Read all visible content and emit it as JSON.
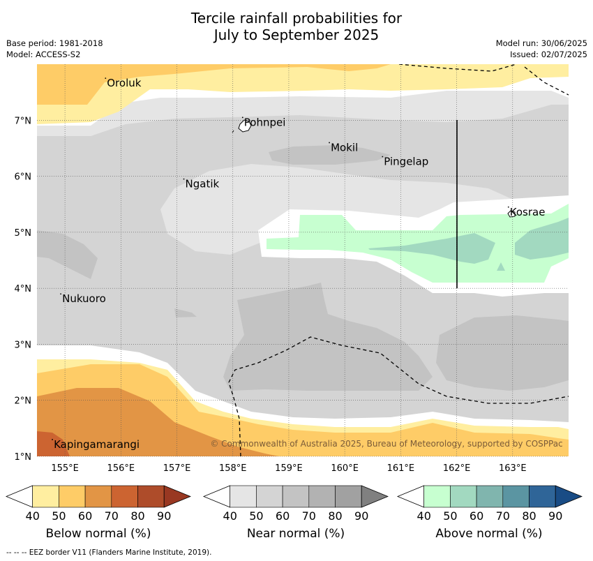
{
  "title": {
    "line1": "Tercile rainfall probabilities for",
    "line2": "July to September 2025"
  },
  "meta": {
    "base_period": "Base period: 1981-2018",
    "model": "Model: ACCESS-S2",
    "model_run": "Model run: 30/06/2025",
    "issued": "Issued: 02/07/2025"
  },
  "map": {
    "lon_ticks": [
      "155°E",
      "156°E",
      "157°E",
      "158°E",
      "159°E",
      "160°E",
      "161°E",
      "162°E",
      "163°E"
    ],
    "lat_ticks": [
      "7°N",
      "6°N",
      "5°N",
      "4°N",
      "3°N",
      "2°N",
      "1°N"
    ],
    "places": [
      {
        "name": "Oroluk",
        "lon": 155.75,
        "lat": 7.6
      },
      {
        "name": "Pohnpei",
        "lon": 158.2,
        "lat": 6.9
      },
      {
        "name": "Mokil",
        "lon": 159.75,
        "lat": 6.45
      },
      {
        "name": "Pingelap",
        "lon": 160.7,
        "lat": 6.2
      },
      {
        "name": "Ngatik",
        "lon": 157.15,
        "lat": 5.8
      },
      {
        "name": "Kosrae",
        "lon": 162.95,
        "lat": 5.3
      },
      {
        "name": "Nukuoro",
        "lon": 154.95,
        "lat": 3.75
      },
      {
        "name": "Kapingamarangi",
        "lon": 154.8,
        "lat": 1.15
      }
    ],
    "credit": "© Commonwealth of Australia 2025, Bureau of Meteorology, supported by COSPPac"
  },
  "colorbars": [
    {
      "label": "Below normal (%)",
      "ticks": [
        "40",
        "50",
        "60",
        "70",
        "80",
        "90"
      ],
      "colors": [
        "#ffeea0",
        "#fecc67",
        "#e29545",
        "#cc6431",
        "#ae4c2a",
        "#993822"
      ]
    },
    {
      "label": "Near normal (%)",
      "ticks": [
        "40",
        "50",
        "60",
        "70",
        "80",
        "90"
      ],
      "colors": [
        "#e5e5e5",
        "#d4d4d4",
        "#c3c3c3",
        "#b2b2b2",
        "#a1a1a1",
        "#808080"
      ]
    },
    {
      "label": "Above normal (%)",
      "ticks": [
        "40",
        "50",
        "60",
        "70",
        "80",
        "90"
      ],
      "colors": [
        "#c7ffd0",
        "#a2d9c0",
        "#80b5ae",
        "#5b95a2",
        "#2f6598",
        "#194c85"
      ]
    }
  ],
  "footer": "--  --  -- EEZ border V11 (Flanders Marine Institute, 2019)."
}
